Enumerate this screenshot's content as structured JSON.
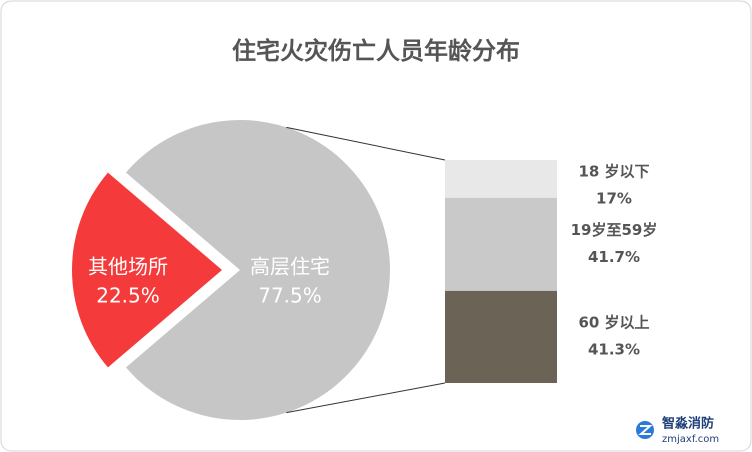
{
  "chart_data": {
    "type": "pie",
    "title": "住宅火灾伤亡人员年龄分布",
    "pie": {
      "categories": [
        "其他场所",
        "高层住宅"
      ],
      "values": [
        22.5,
        77.5
      ],
      "value_labels": [
        "22.5%",
        "77.5%"
      ],
      "colors": [
        "#f43a3a",
        "#c6c6c6"
      ]
    },
    "bar": {
      "categories": [
        "18 岁以下",
        "19岁至59岁",
        "60 岁以上"
      ],
      "values": [
        17,
        41.7,
        41.3
      ],
      "value_labels": [
        "17%",
        "41.7%",
        "41.3%"
      ],
      "colors": [
        "#e8e8e8",
        "#c9c9c9",
        "#6b6456"
      ]
    }
  },
  "watermark": {
    "name": "智淼消防",
    "site": "zmjaxf.com"
  }
}
